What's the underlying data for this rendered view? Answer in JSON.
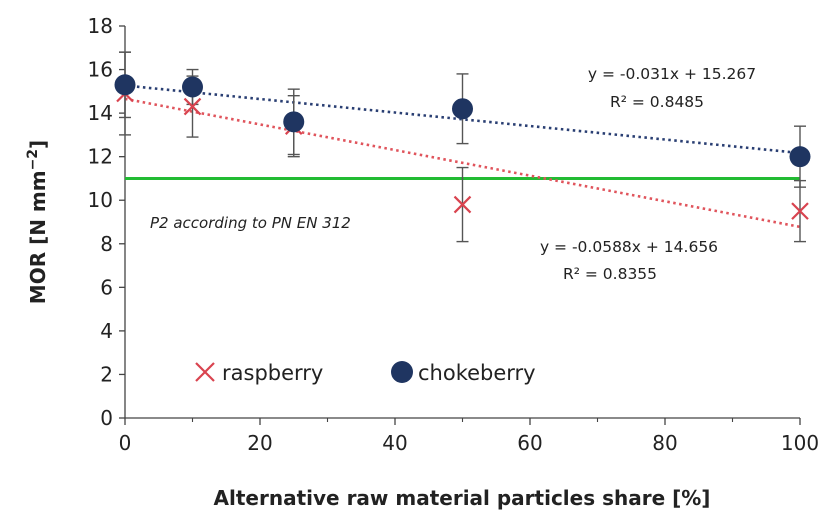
{
  "chart_data": {
    "type": "scatter",
    "xlabel": "Alternative raw material particles share [%]",
    "ylabel": "MOR [N mm",
    "ylabel_sup": "−2",
    "ylabel_close": "]",
    "xlim": [
      0,
      100
    ],
    "ylim": [
      0,
      18
    ],
    "xticks": [
      0,
      20,
      40,
      60,
      80,
      100
    ],
    "yticks": [
      0,
      2,
      4,
      6,
      8,
      10,
      12,
      14,
      16,
      18
    ],
    "grid": false,
    "legend_position": "bottom-left",
    "series": [
      {
        "name": "raspberry",
        "marker": "x",
        "color": "#d9434f",
        "points": [
          {
            "x": 0,
            "y": 14.9,
            "err": 1.9
          },
          {
            "x": 10,
            "y": 14.3,
            "err": 1.4
          },
          {
            "x": 25,
            "y": 13.4,
            "err": 1.4
          },
          {
            "x": 50,
            "y": 9.8,
            "err": 1.7
          },
          {
            "x": 100,
            "y": 9.5,
            "err": 1.4
          }
        ],
        "trendline": {
          "slope": -0.0588,
          "intercept": 14.656,
          "color": "#e0545c"
        },
        "equation": "y = -0.0588x + 14.656",
        "r2": "R² = 0.8355"
      },
      {
        "name": "chokeberry",
        "marker": "circle",
        "color": "#1f3561",
        "points": [
          {
            "x": 0,
            "y": 15.3,
            "err": 1.5
          },
          {
            "x": 10,
            "y": 15.2,
            "err": 0.8
          },
          {
            "x": 25,
            "y": 13.6,
            "err": 1.5
          },
          {
            "x": 50,
            "y": 14.2,
            "err": 1.6
          },
          {
            "x": 100,
            "y": 12.0,
            "err": 1.4
          }
        ],
        "trendline": {
          "slope": -0.031,
          "intercept": 15.267,
          "color": "#2a3f73"
        },
        "equation": "y = -0.031x + 15.267",
        "r2": "R² = 0.8485"
      }
    ],
    "reference_line": {
      "y": 11,
      "color": "#22bb33",
      "label": "P2 according to PN EN 312"
    }
  }
}
